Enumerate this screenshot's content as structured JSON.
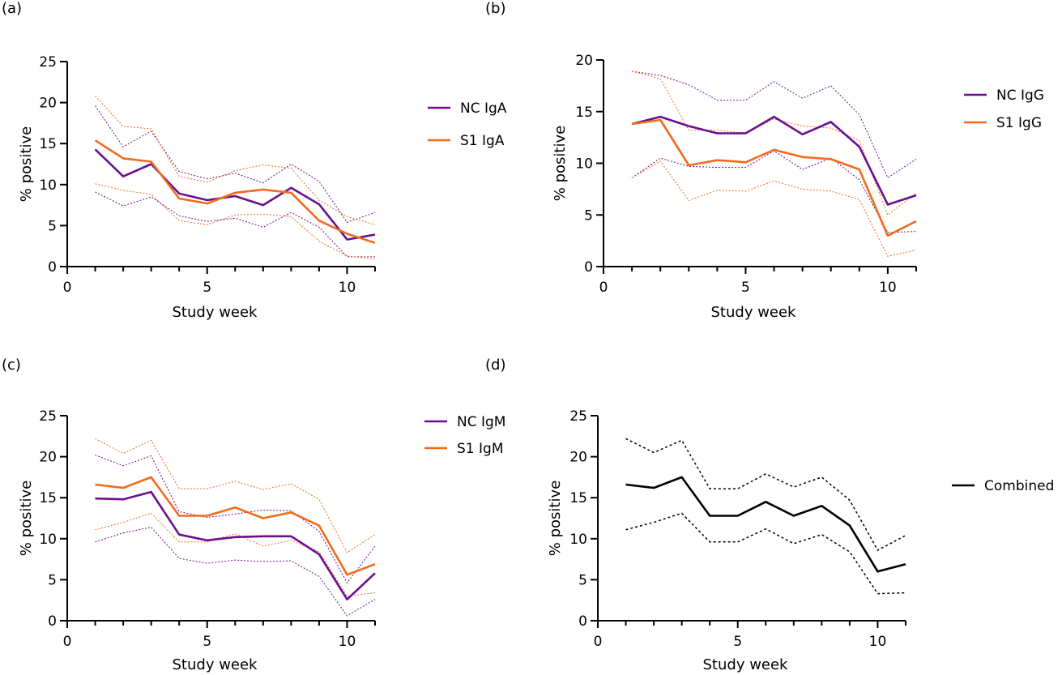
{
  "colors": {
    "nc": "#6a0f8e",
    "s1": "#f26b1d",
    "combined": "#000000",
    "axis": "#000000"
  },
  "chart_data": [
    {
      "panel": "(a)",
      "type": "line",
      "xlabel": "Study week",
      "ylabel": "% positive",
      "xlim": [
        0,
        11
      ],
      "ylim": [
        0,
        25
      ],
      "xticks": [
        0,
        5,
        10
      ],
      "yticks": [
        0,
        5,
        10,
        15,
        20,
        25
      ],
      "legend_position": "right",
      "grid": false,
      "x": [
        1,
        2,
        3,
        4,
        5,
        6,
        7,
        8,
        9,
        10,
        11
      ],
      "series": [
        {
          "name": "NC IgA",
          "color": "nc",
          "values": [
            14.3,
            11.0,
            12.5,
            8.9,
            8.1,
            8.6,
            7.5,
            9.6,
            7.6,
            3.3,
            3.9
          ],
          "upper": [
            19.6,
            14.6,
            16.5,
            11.6,
            10.7,
            11.4,
            10.2,
            12.5,
            10.4,
            5.4,
            6.6
          ],
          "lower": [
            9.1,
            7.4,
            8.5,
            6.2,
            5.5,
            5.9,
            4.8,
            6.6,
            4.8,
            1.2,
            1.2
          ]
        },
        {
          "name": "S1 IgA",
          "color": "s1",
          "values": [
            15.4,
            13.2,
            12.8,
            8.3,
            7.7,
            9.0,
            9.4,
            9.0,
            5.6,
            4.0,
            2.9
          ],
          "upper": [
            20.8,
            17.1,
            16.8,
            11.0,
            10.3,
            11.7,
            12.4,
            12.0,
            8.1,
            6.1,
            5.1
          ],
          "lower": [
            10.1,
            9.3,
            8.8,
            5.6,
            5.1,
            6.3,
            6.4,
            6.1,
            3.1,
            1.3,
            0.9
          ]
        }
      ]
    },
    {
      "panel": "(b)",
      "type": "line",
      "xlabel": "Study week",
      "ylabel": "% positive",
      "xlim": [
        0,
        11
      ],
      "ylim": [
        0,
        20
      ],
      "xticks": [
        0,
        5,
        10
      ],
      "yticks": [
        0,
        5,
        10,
        15,
        20
      ],
      "legend_position": "right",
      "grid": false,
      "x": [
        1,
        2,
        3,
        4,
        5,
        6,
        7,
        8,
        9,
        10,
        11
      ],
      "series": [
        {
          "name": "NC IgG",
          "color": "nc",
          "values": [
            13.8,
            14.5,
            13.6,
            12.9,
            12.9,
            14.5,
            12.8,
            14.0,
            11.6,
            6.0,
            6.9
          ],
          "upper": [
            18.9,
            18.5,
            17.6,
            16.1,
            16.1,
            17.9,
            16.3,
            17.5,
            14.7,
            8.6,
            10.4
          ],
          "lower": [
            8.6,
            10.5,
            9.7,
            9.6,
            9.6,
            11.2,
            9.4,
            10.5,
            8.4,
            3.3,
            3.4
          ]
        },
        {
          "name": "S1 IgG",
          "color": "s1",
          "values": [
            13.8,
            14.2,
            9.8,
            10.3,
            10.1,
            11.3,
            10.6,
            10.4,
            9.4,
            3.0,
            4.4
          ],
          "upper": [
            18.9,
            18.2,
            13.2,
            13.2,
            12.9,
            14.3,
            13.6,
            13.4,
            12.2,
            5.0,
            7.1
          ],
          "lower": [
            8.6,
            10.2,
            6.4,
            7.4,
            7.3,
            8.3,
            7.5,
            7.3,
            6.5,
            1.0,
            1.6
          ]
        }
      ]
    },
    {
      "panel": "(c)",
      "type": "line",
      "xlabel": "Study week",
      "ylabel": "% positive",
      "xlim": [
        0,
        11
      ],
      "ylim": [
        0,
        25
      ],
      "xticks": [
        0,
        5,
        10
      ],
      "yticks": [
        0,
        5,
        10,
        15,
        20,
        25
      ],
      "legend_position": "right",
      "grid": false,
      "x": [
        1,
        2,
        3,
        4,
        5,
        6,
        7,
        8,
        9,
        10,
        11
      ],
      "series": [
        {
          "name": "NC IgM",
          "color": "nc",
          "values": [
            14.9,
            14.8,
            15.7,
            10.5,
            9.8,
            10.2,
            10.3,
            10.3,
            8.1,
            2.6,
            5.8
          ],
          "upper": [
            20.2,
            18.9,
            20.1,
            13.3,
            12.6,
            13.0,
            13.5,
            13.4,
            10.9,
            4.6,
            9.1
          ],
          "lower": [
            9.6,
            10.7,
            11.4,
            7.6,
            7.0,
            7.4,
            7.2,
            7.3,
            5.4,
            0.6,
            2.6
          ]
        },
        {
          "name": "S1 IgM",
          "color": "s1",
          "values": [
            16.6,
            16.2,
            17.5,
            12.8,
            12.8,
            13.8,
            12.5,
            13.2,
            11.6,
            5.6,
            6.9
          ],
          "upper": [
            22.2,
            20.4,
            22.0,
            16.1,
            16.1,
            17.0,
            16.0,
            16.7,
            14.8,
            8.3,
            10.5
          ],
          "lower": [
            11.1,
            12.0,
            13.1,
            9.6,
            9.6,
            10.6,
            9.1,
            9.8,
            8.4,
            3.0,
            3.4
          ]
        }
      ]
    },
    {
      "panel": "(d)",
      "type": "line",
      "xlabel": "Study week",
      "ylabel": "% positive",
      "xlim": [
        0,
        11
      ],
      "ylim": [
        0,
        25
      ],
      "xticks": [
        0,
        5,
        10
      ],
      "yticks": [
        0,
        5,
        10,
        15,
        20,
        25
      ],
      "legend_position": "right",
      "grid": false,
      "x": [
        1,
        2,
        3,
        4,
        5,
        6,
        7,
        8,
        9,
        10,
        11
      ],
      "series": [
        {
          "name": "Combined",
          "color": "combined",
          "values": [
            16.6,
            16.2,
            17.5,
            12.8,
            12.8,
            14.5,
            12.8,
            14.0,
            11.6,
            6.0,
            6.9
          ],
          "upper": [
            22.2,
            20.5,
            22.0,
            16.1,
            16.1,
            17.9,
            16.3,
            17.5,
            14.7,
            8.6,
            10.4
          ],
          "lower": [
            11.1,
            12.0,
            13.1,
            9.6,
            9.6,
            11.2,
            9.4,
            10.5,
            8.4,
            3.3,
            3.4
          ]
        }
      ]
    }
  ]
}
